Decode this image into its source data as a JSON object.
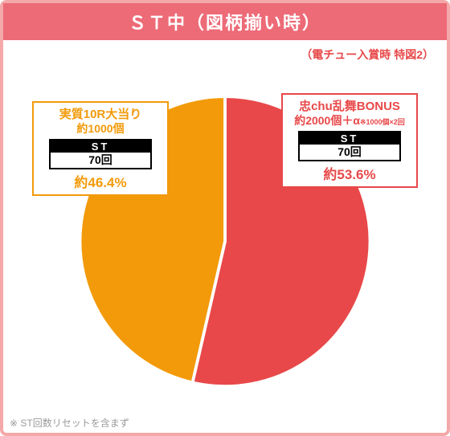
{
  "panel": {
    "border_color": "#f4a8a8",
    "title_bg": "#ed6a77",
    "title_color": "#ffffff",
    "title_text": "ＳＴ中（図柄揃い時）"
  },
  "subtitle": {
    "text": "（電チュー入賞時 特図2）",
    "color": "#e84849"
  },
  "chart": {
    "type": "pie",
    "size": 380,
    "slices": [
      {
        "label": "left",
        "value": 46.4,
        "color": "#f29a0a"
      },
      {
        "label": "right",
        "value": 53.6,
        "color": "#e84849"
      }
    ],
    "stroke": "#ffffff",
    "stroke_width": 2
  },
  "callouts": {
    "left": {
      "border_color": "#f29a0a",
      "title": "実質10R大当り",
      "title_color": "#f29a0a",
      "subtitle": "約1000個",
      "subtitle_small": "",
      "st_label": "ST",
      "st_value": "70回",
      "percent": "約46.4%",
      "percent_color": "#f29a0a"
    },
    "right": {
      "border_color": "#e84849",
      "title": "忠chu乱舞BONUS",
      "title_color": "#e84849",
      "subtitle": "約2000個＋α",
      "subtitle_small": "※1000個×2回",
      "st_label": "ST",
      "st_value": "70回",
      "percent": "約53.6%",
      "percent_color": "#e84849"
    }
  },
  "footnote": {
    "text": "※ ST回数リセットを含まず",
    "color": "#9a9a9a"
  }
}
